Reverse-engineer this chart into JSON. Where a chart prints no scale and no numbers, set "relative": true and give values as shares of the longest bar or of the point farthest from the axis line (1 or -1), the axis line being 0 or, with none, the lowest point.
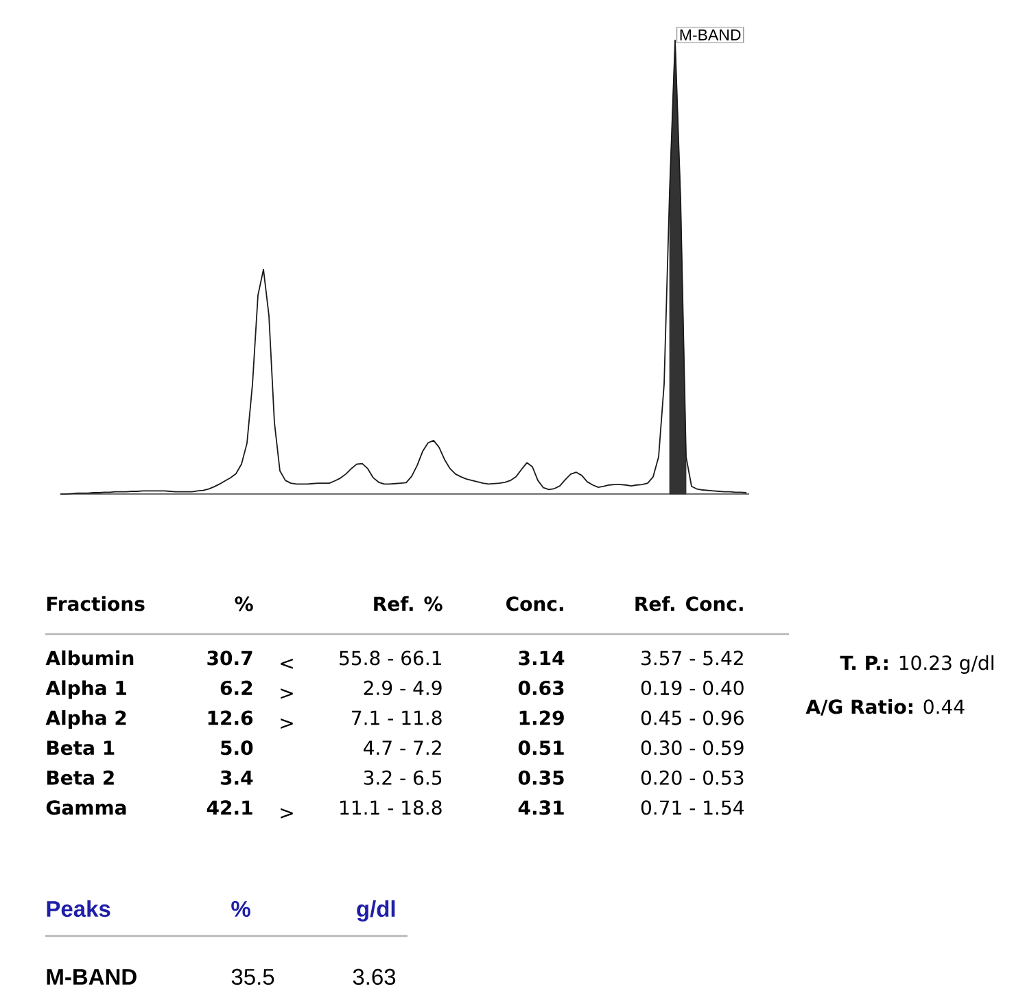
{
  "chart_data": [
    {
      "type": "line",
      "relative": true,
      "categories": [
        null,
        null,
        null,
        null,
        null,
        null,
        null,
        null,
        null,
        null,
        null,
        null,
        null,
        null,
        null,
        null,
        null,
        null,
        null,
        null,
        null,
        null,
        null,
        null,
        null,
        null,
        null,
        null,
        null,
        null,
        null,
        null,
        null,
        null,
        null,
        null,
        null,
        null,
        null,
        null,
        null,
        null,
        null,
        null,
        null,
        null,
        null,
        null,
        null,
        null,
        null,
        null,
        null,
        null,
        null,
        null,
        null,
        null,
        null,
        null,
        null,
        null,
        null,
        null,
        null,
        null,
        null,
        null,
        null,
        null,
        null,
        null,
        null,
        null,
        null,
        null,
        null,
        null,
        null,
        null,
        null,
        null,
        null,
        null,
        null,
        null,
        null,
        null,
        null,
        null,
        null,
        null,
        null,
        null,
        null,
        null,
        null,
        null,
        null,
        null,
        null,
        null,
        null,
        null,
        null,
        null,
        null,
        null,
        null,
        null,
        null,
        null,
        null,
        null,
        null,
        null,
        null,
        null,
        null,
        null,
        null,
        null,
        null,
        null,
        null,
        null
      ],
      "series": [
        {
          "type": "line",
          "color": "#1a1a1a",
          "values": [
            0,
            0,
            0.001,
            0.002,
            0.002,
            0.002,
            0.003,
            0.003,
            0.004,
            0.004,
            0.005,
            0.005,
            0.005,
            0.006,
            0.006,
            0.007,
            0.007,
            0.007,
            0.007,
            0.007,
            0.006,
            0.005,
            0.005,
            0.005,
            0.005,
            0.007,
            0.008,
            0.011,
            0.016,
            0.022,
            0.029,
            0.036,
            0.045,
            0.066,
            0.112,
            0.242,
            0.438,
            0.495,
            0.393,
            0.157,
            0.051,
            0.03,
            0.024,
            0.022,
            0.022,
            0.022,
            0.023,
            0.024,
            0.024,
            0.024,
            0.029,
            0.035,
            0.044,
            0.056,
            0.066,
            0.067,
            0.056,
            0.036,
            0.026,
            0.022,
            0.022,
            0.023,
            0.024,
            0.025,
            0.039,
            0.063,
            0.094,
            0.113,
            0.118,
            0.103,
            0.076,
            0.056,
            0.044,
            0.038,
            0.033,
            0.03,
            0.027,
            0.024,
            0.022,
            0.023,
            0.024,
            0.026,
            0.03,
            0.038,
            0.054,
            0.069,
            0.06,
            0.03,
            0.014,
            0.01,
            0.012,
            0.018,
            0.032,
            0.044,
            0.048,
            0.041,
            0.027,
            0.02,
            0.015,
            0.017,
            0.02,
            0.021,
            0.021,
            0.02,
            0.018,
            0.02,
            0.021,
            0.024,
            0.038,
            0.082,
            0.242,
            0.665,
            1,
            0.65,
            0.082,
            0.017,
            0.011,
            0.009,
            0.008,
            0.007,
            0.006,
            0.005,
            0.005,
            0.004,
            0.004,
            0.003
          ]
        },
        {
          "type": "area",
          "name": "M-BAND",
          "color": "#333333",
          "values": [
            null,
            null,
            null,
            null,
            null,
            null,
            null,
            null,
            null,
            null,
            null,
            null,
            null,
            null,
            null,
            null,
            null,
            null,
            null,
            null,
            null,
            null,
            null,
            null,
            null,
            null,
            null,
            null,
            null,
            null,
            null,
            null,
            null,
            null,
            null,
            null,
            null,
            null,
            null,
            null,
            null,
            null,
            null,
            null,
            null,
            null,
            null,
            null,
            null,
            null,
            null,
            null,
            null,
            null,
            null,
            null,
            null,
            null,
            null,
            null,
            null,
            null,
            null,
            null,
            null,
            null,
            null,
            null,
            null,
            null,
            null,
            null,
            null,
            null,
            null,
            null,
            null,
            null,
            null,
            null,
            null,
            null,
            null,
            null,
            null,
            null,
            null,
            null,
            null,
            null,
            null,
            null,
            null,
            null,
            null,
            null,
            null,
            null,
            null,
            null,
            null,
            null,
            null,
            null,
            null,
            null,
            null,
            null,
            null,
            null,
            null,
            0.665,
            1,
            0.65,
            0.082,
            null,
            null,
            null,
            null,
            null,
            null,
            null,
            null,
            null,
            null,
            null
          ]
        }
      ]
    },
    {
      "type": "other",
      "ylabel": "Fractions",
      "color": "#000000",
      "categories": [
        "%",
        null,
        "Ref. %",
        "Conc.",
        "Ref. Conc."
      ],
      "y_categories": [
        "Albumin",
        "Alpha 1",
        "Alpha 2",
        "Beta 1",
        "Beta 2",
        "Gamma"
      ],
      "cell_labels": [
        [
          "30.7",
          "<",
          "55.8 - 66.1",
          "3.14",
          "3.57 - 5.42"
        ],
        [
          "6.2",
          ">",
          "2.9 - 4.9",
          "0.63",
          "0.19 - 0.40"
        ],
        [
          "12.6",
          ">",
          "7.1 - 11.8",
          "1.29",
          "0.45 - 0.96"
        ],
        [
          "5.0",
          null,
          "4.7 - 7.2",
          "0.51",
          "0.30 - 0.59"
        ],
        [
          "3.4",
          null,
          "3.2 - 6.5",
          "0.35",
          "0.20 - 0.53"
        ],
        [
          "42.1",
          ">",
          "11.1 - 18.8",
          "4.31",
          "0.71 - 1.54"
        ]
      ],
      "annotations": [
        "**T. P.:** 10.23 g/dl",
        "**A/G Ratio:** 0.44"
      ]
    },
    {
      "type": "other",
      "ylabel": "Peaks",
      "color": "#1f1fa8",
      "categories": [
        "%",
        "g/dl"
      ],
      "y_categories": [
        "M-BAND"
      ],
      "cell_labels": [
        [
          "35.5",
          "3.63"
        ]
      ]
    }
  ]
}
